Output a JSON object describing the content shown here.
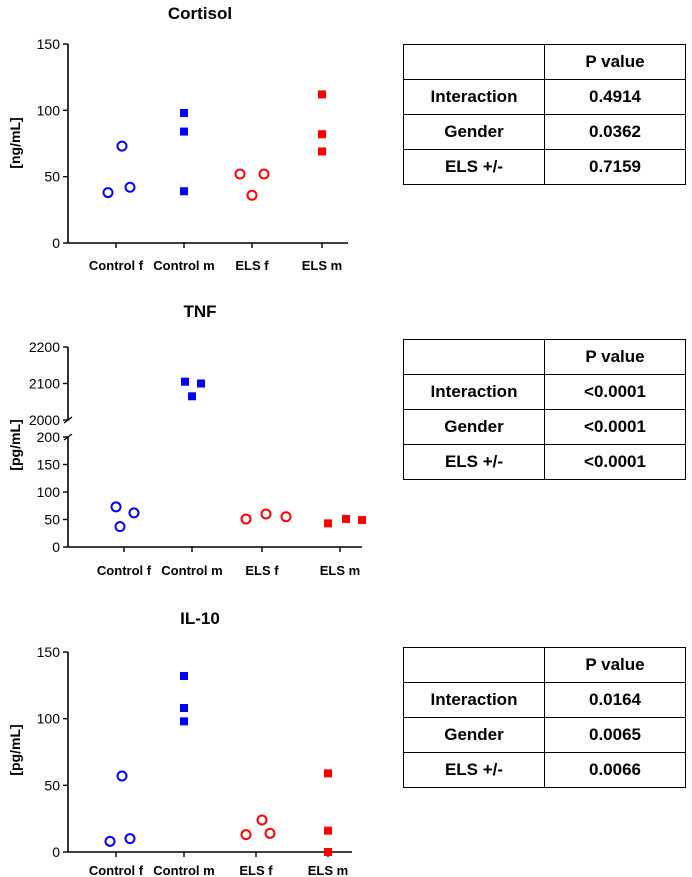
{
  "chart_data": [
    {
      "type": "scatter",
      "title": "Cortisol",
      "ylabel": "[ng/mL]",
      "xlabel": "",
      "ylim": [
        0,
        150
      ],
      "yticks": [
        0,
        50,
        100,
        150
      ],
      "categories": [
        "Control f",
        "Control m",
        "ELS f",
        "ELS m"
      ],
      "series": [
        {
          "name": "Control f",
          "marker": "open-circle",
          "color": "#0000ff",
          "values": [
            38,
            73,
            42
          ]
        },
        {
          "name": "Control m",
          "marker": "square",
          "color": "#0000ff",
          "values": [
            98,
            84,
            39
          ]
        },
        {
          "name": "ELS f",
          "marker": "open-circle",
          "color": "#ff0000",
          "values": [
            52,
            36,
            52
          ]
        },
        {
          "name": "ELS m",
          "marker": "square",
          "color": "#ff0000",
          "values": [
            112,
            82,
            69
          ]
        }
      ],
      "table": {
        "header": [
          "",
          "P value"
        ],
        "rows": [
          [
            "Interaction",
            "0.4914"
          ],
          [
            "Gender",
            "0.0362"
          ],
          [
            "ELS +/-",
            "0.7159"
          ]
        ]
      }
    },
    {
      "type": "scatter",
      "title": "TNF",
      "ylabel": "[pg/mL]",
      "xlabel": "",
      "ylim": [
        0,
        2200
      ],
      "axis_break": {
        "lower": [
          0,
          200
        ],
        "upper": [
          2000,
          2200
        ]
      },
      "yticks_lower": [
        0,
        50,
        100,
        150,
        200
      ],
      "yticks_upper": [
        2000,
        2100,
        2200
      ],
      "categories": [
        "Control f",
        "Control m",
        "ELS f",
        "ELS m"
      ],
      "series": [
        {
          "name": "Control f",
          "marker": "open-circle",
          "color": "#0000ff",
          "values": [
            73,
            37,
            62
          ]
        },
        {
          "name": "Control m",
          "marker": "square",
          "color": "#0000ff",
          "values": [
            2105,
            2065,
            2100
          ]
        },
        {
          "name": "ELS f",
          "marker": "open-circle",
          "color": "#ff0000",
          "values": [
            51,
            60,
            55
          ]
        },
        {
          "name": "ELS m",
          "marker": "square",
          "color": "#ff0000",
          "values": [
            43,
            51,
            49
          ]
        }
      ],
      "table": {
        "header": [
          "",
          "P value"
        ],
        "rows": [
          [
            "Interaction",
            "<0.0001"
          ],
          [
            "Gender",
            "<0.0001"
          ],
          [
            "ELS +/-",
            "<0.0001"
          ]
        ]
      }
    },
    {
      "type": "scatter",
      "title": "IL-10",
      "ylabel": "[pg/mL]",
      "xlabel": "",
      "ylim": [
        0,
        150
      ],
      "yticks": [
        0,
        50,
        100,
        150
      ],
      "categories": [
        "Control f",
        "Control m",
        "ELS f",
        "ELS m"
      ],
      "series": [
        {
          "name": "Control f",
          "marker": "open-circle",
          "color": "#0000ff",
          "values": [
            8,
            57,
            10
          ]
        },
        {
          "name": "Control m",
          "marker": "square",
          "color": "#0000ff",
          "values": [
            132,
            108,
            98
          ]
        },
        {
          "name": "ELS f",
          "marker": "open-circle",
          "color": "#ff0000",
          "values": [
            13,
            24,
            14
          ]
        },
        {
          "name": "ELS m",
          "marker": "square",
          "color": "#ff0000",
          "values": [
            59,
            16,
            0
          ]
        }
      ],
      "table": {
        "header": [
          "",
          "P value"
        ],
        "rows": [
          [
            "Interaction",
            "0.0164"
          ],
          [
            "Gender",
            "0.0065"
          ],
          [
            "ELS +/-",
            "0.0066"
          ]
        ]
      }
    }
  ]
}
